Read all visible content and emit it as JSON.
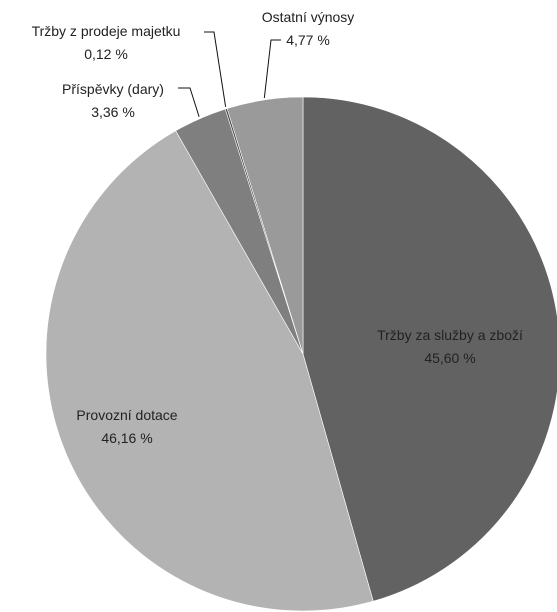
{
  "chart_data": {
    "type": "pie",
    "title": "",
    "start": "12 o'clock",
    "direction": "clockwise",
    "slices": [
      {
        "name": "Tržby za služby a zboží",
        "value": 45.6,
        "label": "45,60 %",
        "color": "#626262"
      },
      {
        "name": "Provozní dotace",
        "value": 46.16,
        "label": "46,16 %",
        "color": "#b3b3b3"
      },
      {
        "name": "Příspěvky (dary)",
        "value": 3.36,
        "label": "3,36 %",
        "color": "#7f7f7f"
      },
      {
        "name": "Tržby z prodeje majetku",
        "value": 0.12,
        "label": "0,12 %",
        "color": "#474747"
      },
      {
        "name": "Ostatní výnosy",
        "value": 4.77,
        "label": "4,77 %",
        "color": "#9a9a9a"
      }
    ]
  }
}
